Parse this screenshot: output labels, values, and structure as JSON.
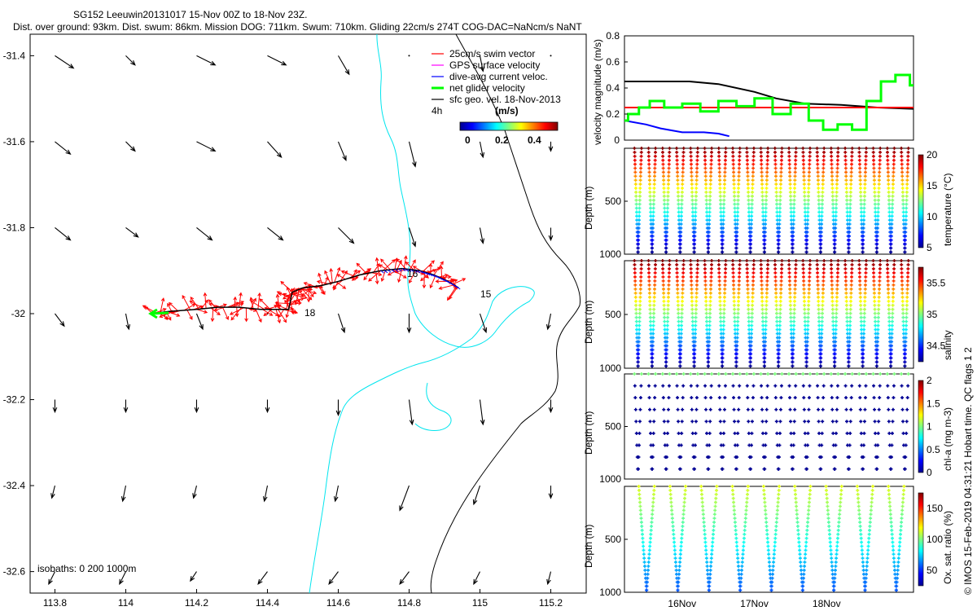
{
  "figure": {
    "title_line1": "SG152 Leeuwin20131017 15-Nov 00Z to 18-Nov 23Z.",
    "title_line2": "Dist. over ground: 93km. Dist. swum: 86km. Mission DOG: 711km. Swum: 710km. Gliding 22cm/s 274T COG-DAC=NaNcm/s NaNT",
    "credit": "© IMOS 15-Feb-2019 04:31:21 Hobart time. QC flags 1  2"
  },
  "chart_data": [
    {
      "type": "scatter",
      "panel": "map",
      "xlim": [
        113.73,
        115.3
      ],
      "ylim": [
        -32.65,
        -31.35
      ],
      "x_ticks": [
        "113.8",
        "114",
        "114.2",
        "114.4",
        "114.6",
        "114.8",
        "115",
        "115.2"
      ],
      "y_ticks": [
        "-31.4",
        "-31.6",
        "-31.8",
        "-32",
        "-32.2",
        "-32.4",
        "-32.6"
      ],
      "legend": {
        "position": "top-right",
        "items": [
          {
            "label": "25cm/s swim vector",
            "color": "#ff0000"
          },
          {
            "label": "GPS surface velocity",
            "color": "#ff00ff"
          },
          {
            "label": "dive-avg current veloc.",
            "color": "#0000ff"
          },
          {
            "label": "net glider velocity",
            "color": "#00ff00"
          },
          {
            "label": "sfc geo. vel. 18-Nov-2013",
            "color": "#000000"
          }
        ],
        "extra_label": "4h",
        "colorbar_title": "(m/s)",
        "colorbar_ticks": [
          "0",
          "0.2",
          "0.4"
        ]
      },
      "isobath_label": "isobaths: 0   200  1000m",
      "track_labels": [
        "16",
        "15",
        "18"
      ],
      "track": [
        [
          114.07,
          -32.0
        ],
        [
          114.12,
          -31.995
        ],
        [
          114.2,
          -31.99
        ],
        [
          114.26,
          -31.985
        ],
        [
          114.32,
          -31.985
        ],
        [
          114.38,
          -31.99
        ],
        [
          114.43,
          -31.99
        ],
        [
          114.46,
          -31.99
        ],
        [
          114.465,
          -31.97
        ],
        [
          114.47,
          -31.95
        ],
        [
          114.5,
          -31.94
        ],
        [
          114.55,
          -31.935
        ],
        [
          114.6,
          -31.925
        ],
        [
          114.66,
          -31.91
        ],
        [
          114.72,
          -31.9
        ],
        [
          114.78,
          -31.895
        ],
        [
          114.83,
          -31.9
        ],
        [
          114.87,
          -31.91
        ],
        [
          114.91,
          -31.925
        ],
        [
          114.94,
          -31.94
        ]
      ],
      "surface_vectors": [
        {
          "x": 113.8,
          "y": -31.4,
          "u": 0.06,
          "v": -0.04
        },
        {
          "x": 114,
          "y": -31.4,
          "u": 0.03,
          "v": -0.03
        },
        {
          "x": 114.2,
          "y": -31.4,
          "u": 0.06,
          "v": -0.03
        },
        {
          "x": 114.4,
          "y": -31.4,
          "u": 0.06,
          "v": -0.03
        },
        {
          "x": 114.6,
          "y": -31.4,
          "u": 0.035,
          "v": -0.06
        },
        {
          "x": 114.8,
          "y": -31.4,
          "u": 0.0,
          "v": 0.0
        },
        {
          "x": 115,
          "y": -31.4,
          "u": 0.01,
          "v": -0.05
        },
        {
          "x": 115.2,
          "y": -31.4,
          "u": 0.0,
          "v": 0.0
        },
        {
          "x": 113.8,
          "y": -31.6,
          "u": 0.05,
          "v": -0.04
        },
        {
          "x": 114,
          "y": -31.6,
          "u": 0.03,
          "v": -0.03
        },
        {
          "x": 114.2,
          "y": -31.6,
          "u": 0.06,
          "v": -0.03
        },
        {
          "x": 114.4,
          "y": -31.6,
          "u": 0.045,
          "v": -0.05
        },
        {
          "x": 114.6,
          "y": -31.6,
          "u": 0.025,
          "v": -0.06
        },
        {
          "x": 114.8,
          "y": -31.6,
          "u": 0.02,
          "v": -0.08
        },
        {
          "x": 115,
          "y": -31.6,
          "u": 0.01,
          "v": -0.05
        },
        {
          "x": 115.2,
          "y": -31.6,
          "u": 0.0,
          "v": -0.03
        },
        {
          "x": 113.8,
          "y": -31.8,
          "u": 0.05,
          "v": -0.04
        },
        {
          "x": 114,
          "y": -31.8,
          "u": 0.04,
          "v": -0.03
        },
        {
          "x": 114.2,
          "y": -31.8,
          "u": 0.05,
          "v": -0.04
        },
        {
          "x": 114.4,
          "y": -31.8,
          "u": 0.05,
          "v": -0.04
        },
        {
          "x": 114.6,
          "y": -31.8,
          "u": 0.05,
          "v": -0.05
        },
        {
          "x": 114.8,
          "y": -31.8,
          "u": 0.02,
          "v": -0.06
        },
        {
          "x": 115,
          "y": -31.8,
          "u": 0.01,
          "v": -0.05
        },
        {
          "x": 115.2,
          "y": -31.8,
          "u": 0.0,
          "v": -0.04
        },
        {
          "x": 113.8,
          "y": -32,
          "u": 0.03,
          "v": -0.04
        },
        {
          "x": 114,
          "y": -32,
          "u": 0.01,
          "v": -0.05
        },
        {
          "x": 114.2,
          "y": -32,
          "u": 0.02,
          "v": -0.05
        },
        {
          "x": 114.4,
          "y": -32,
          "u": 0.0,
          "v": 0.0
        },
        {
          "x": 114.6,
          "y": -32,
          "u": 0.02,
          "v": -0.06
        },
        {
          "x": 114.8,
          "y": -32,
          "u": 0.0,
          "v": -0.06
        },
        {
          "x": 115,
          "y": -32,
          "u": 0.02,
          "v": -0.06
        },
        {
          "x": 115.2,
          "y": -32,
          "u": -0.01,
          "v": -0.05
        },
        {
          "x": 113.8,
          "y": -32.2,
          "u": 0.0,
          "v": -0.04
        },
        {
          "x": 114,
          "y": -32.2,
          "u": 0.0,
          "v": -0.04
        },
        {
          "x": 114.2,
          "y": -32.2,
          "u": 0.0,
          "v": -0.04
        },
        {
          "x": 114.4,
          "y": -32.2,
          "u": 0.0,
          "v": -0.04
        },
        {
          "x": 114.6,
          "y": -32.2,
          "u": 0.0,
          "v": -0.05
        },
        {
          "x": 114.8,
          "y": -32.2,
          "u": 0.01,
          "v": -0.08
        },
        {
          "x": 115,
          "y": -32.2,
          "u": 0.01,
          "v": -0.08
        },
        {
          "x": 115.2,
          "y": -32.2,
          "u": 0.0,
          "v": -0.04
        },
        {
          "x": 113.8,
          "y": -32.4,
          "u": -0.01,
          "v": -0.04
        },
        {
          "x": 114,
          "y": -32.4,
          "u": -0.01,
          "v": -0.05
        },
        {
          "x": 114.2,
          "y": -32.4,
          "u": -0.01,
          "v": -0.04
        },
        {
          "x": 114.4,
          "y": -32.4,
          "u": -0.01,
          "v": -0.05
        },
        {
          "x": 114.6,
          "y": -32.4,
          "u": -0.01,
          "v": -0.05
        },
        {
          "x": 114.8,
          "y": -32.4,
          "u": -0.03,
          "v": -0.08
        },
        {
          "x": 115,
          "y": -32.4,
          "u": -0.02,
          "v": -0.06
        },
        {
          "x": 115.2,
          "y": -32.4,
          "u": 0.0,
          "v": -0.04
        },
        {
          "x": 113.8,
          "y": -32.6,
          "u": -0.02,
          "v": -0.04
        },
        {
          "x": 114,
          "y": -32.6,
          "u": -0.02,
          "v": -0.04
        },
        {
          "x": 114.2,
          "y": -32.6,
          "u": -0.02,
          "v": -0.03
        },
        {
          "x": 114.4,
          "y": -32.6,
          "u": -0.03,
          "v": -0.04
        },
        {
          "x": 114.6,
          "y": -32.6,
          "u": -0.03,
          "v": -0.04
        },
        {
          "x": 114.8,
          "y": -32.6,
          "u": -0.03,
          "v": -0.04
        },
        {
          "x": 115,
          "y": -32.6,
          "u": -0.02,
          "v": -0.04
        },
        {
          "x": 115.2,
          "y": -32.6,
          "u": -0.01,
          "v": -0.04
        }
      ]
    },
    {
      "type": "line",
      "panel": "velocity",
      "ylabel": "velocity magnitude (m/s)",
      "xlim": [
        15.0,
        19.0
      ],
      "ylim": [
        0,
        0.8
      ],
      "y_ticks": [
        "0",
        "0.2",
        "0.4",
        "0.6",
        "0.8"
      ],
      "series": [
        {
          "color": "#000000",
          "x": [
            15.0,
            15.3,
            15.9,
            16.3,
            16.8,
            17.1,
            17.5,
            18.0,
            18.5,
            19.0
          ],
          "y": [
            0.45,
            0.45,
            0.45,
            0.43,
            0.37,
            0.32,
            0.28,
            0.27,
            0.25,
            0.24
          ]
        },
        {
          "color": "#ff0000",
          "x": [
            15.0,
            19.0
          ],
          "y": [
            0.25,
            0.25
          ]
        },
        {
          "color": "#0000ff",
          "x": [
            15.0,
            15.3,
            15.5,
            15.8,
            16.1,
            16.3,
            16.45
          ],
          "y": [
            0.15,
            0.12,
            0.09,
            0.06,
            0.06,
            0.05,
            0.03
          ]
        },
        {
          "color": "#00ff00",
          "x": [
            15.0,
            15.05,
            15.05,
            15.2,
            15.2,
            15.35,
            15.35,
            15.55,
            15.55,
            15.8,
            15.8,
            16.05,
            16.05,
            16.3,
            16.3,
            16.55,
            16.55,
            16.8,
            16.8,
            17.05,
            17.05,
            17.3,
            17.3,
            17.55,
            17.55,
            17.75,
            17.75,
            17.95,
            17.95,
            18.15,
            18.15,
            18.35,
            18.35,
            18.55,
            18.55,
            18.75,
            18.75,
            18.95,
            18.95,
            19.0
          ],
          "y": [
            0.15,
            0.15,
            0.2,
            0.2,
            0.25,
            0.25,
            0.3,
            0.3,
            0.25,
            0.25,
            0.28,
            0.28,
            0.22,
            0.22,
            0.3,
            0.3,
            0.26,
            0.26,
            0.32,
            0.32,
            0.2,
            0.2,
            0.28,
            0.28,
            0.15,
            0.15,
            0.08,
            0.08,
            0.12,
            0.12,
            0.08,
            0.08,
            0.3,
            0.3,
            0.45,
            0.45,
            0.5,
            0.5,
            0.42,
            0.42
          ]
        }
      ]
    },
    {
      "type": "scatter",
      "panel": "temperature",
      "ylabel": "Depth (m)",
      "colorbar_label": "temperature (°C)",
      "colorbar_ticks": [
        "5",
        "10",
        "15",
        "20"
      ],
      "ylim": [
        1000,
        0
      ],
      "y_ticks": [
        "500",
        "1000"
      ],
      "profiles": 20,
      "max_depth": 980,
      "min_depth": 0
    },
    {
      "type": "scatter",
      "panel": "salinity",
      "ylabel": "Depth (m)",
      "colorbar_label": "salinity",
      "colorbar_ticks": [
        "34.5",
        "35",
        "35.5"
      ],
      "ylim": [
        1000,
        0
      ],
      "y_ticks": [
        "500",
        "1000"
      ],
      "profiles": 20,
      "max_depth": 980,
      "min_depth": 0
    },
    {
      "type": "scatter",
      "panel": "chl-a",
      "ylabel": "Depth (m)",
      "colorbar_label": "chl-a (mg m-3)",
      "colorbar_ticks": [
        "0",
        "0.5",
        "1",
        "1.5",
        "2"
      ],
      "ylim": [
        1000,
        0
      ],
      "y_ticks": [
        "500",
        "1000"
      ],
      "profiles": 20,
      "max_depth": 980
    },
    {
      "type": "scatter",
      "panel": "oxygen",
      "ylabel": "Depth (m)",
      "colorbar_label": "Ox. sat. ratio (%)",
      "colorbar_ticks": [
        "50",
        "100",
        "150"
      ],
      "ylim": [
        1000,
        0
      ],
      "y_ticks": [
        "500",
        "1000"
      ],
      "x_ticks": [
        "16Nov",
        "17Nov",
        "18Nov"
      ],
      "profiles": 9,
      "max_depth": 980
    }
  ]
}
